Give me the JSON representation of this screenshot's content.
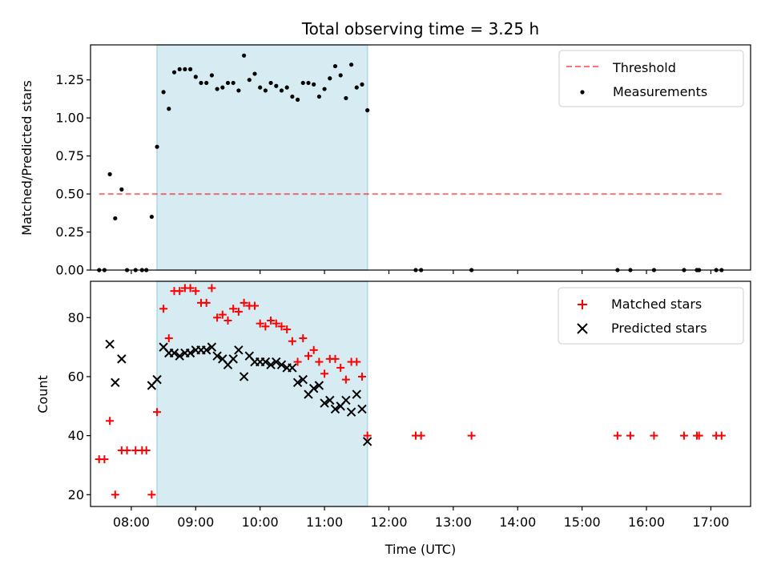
{
  "colors": {
    "shade": "#add8e6",
    "threshold": "#ff0000",
    "measurements": "#000000",
    "matched": "#ff0000",
    "predicted": "#000000"
  },
  "chart_data": [
    {
      "type": "scatter",
      "title": "Total observing time = 3.25 h",
      "ylabel": "Matched/Predicted stars",
      "xlabel": "",
      "xlim": [
        "07:22",
        "17:37"
      ],
      "ylim": [
        0,
        1.48
      ],
      "yticks": [
        "0.00",
        "0.25",
        "0.50",
        "0.75",
        "1.00",
        "1.25"
      ],
      "grid": false,
      "legend": "upper right",
      "shaded_interval": [
        "08:24",
        "11:40"
      ],
      "threshold": {
        "name": "Threshold",
        "y": 0.5,
        "x": [
          "07:30",
          "17:13"
        ],
        "style": "dashed"
      },
      "series": [
        {
          "name": "Measurements",
          "marker": "dot",
          "points": [
            [
              "07:30",
              0.0
            ],
            [
              "07:35",
              0.0
            ],
            [
              "07:40",
              0.63
            ],
            [
              "07:45",
              0.34
            ],
            [
              "07:51",
              0.53
            ],
            [
              "07:56",
              0.0
            ],
            [
              "08:04",
              0.0
            ],
            [
              "08:10",
              0.0
            ],
            [
              "08:14",
              0.0
            ],
            [
              "08:19",
              0.35
            ],
            [
              "08:24",
              0.81
            ],
            [
              "08:30",
              1.17
            ],
            [
              "08:35",
              1.06
            ],
            [
              "08:40",
              1.3
            ],
            [
              "08:45",
              1.32
            ],
            [
              "08:50",
              1.32
            ],
            [
              "08:55",
              1.32
            ],
            [
              "09:00",
              1.27
            ],
            [
              "09:05",
              1.23
            ],
            [
              "09:10",
              1.23
            ],
            [
              "09:15",
              1.28
            ],
            [
              "09:20",
              1.19
            ],
            [
              "09:25",
              1.2
            ],
            [
              "09:30",
              1.23
            ],
            [
              "09:35",
              1.23
            ],
            [
              "09:40",
              1.18
            ],
            [
              "09:45",
              1.41
            ],
            [
              "09:50",
              1.25
            ],
            [
              "09:55",
              1.29
            ],
            [
              "10:00",
              1.2
            ],
            [
              "10:05",
              1.18
            ],
            [
              "10:10",
              1.23
            ],
            [
              "10:15",
              1.21
            ],
            [
              "10:20",
              1.18
            ],
            [
              "10:25",
              1.2
            ],
            [
              "10:30",
              1.14
            ],
            [
              "10:35",
              1.12
            ],
            [
              "10:40",
              1.23
            ],
            [
              "10:45",
              1.23
            ],
            [
              "10:50",
              1.22
            ],
            [
              "10:55",
              1.14
            ],
            [
              "11:00",
              1.19
            ],
            [
              "11:05",
              1.26
            ],
            [
              "11:10",
              1.34
            ],
            [
              "11:15",
              1.28
            ],
            [
              "11:20",
              1.13
            ],
            [
              "11:25",
              1.35
            ],
            [
              "11:30",
              1.2
            ],
            [
              "11:35",
              1.22
            ],
            [
              "11:40",
              1.05
            ],
            [
              "12:25",
              0.0
            ],
            [
              "12:30",
              0.0
            ],
            [
              "13:17",
              0.0
            ],
            [
              "15:33",
              0.0
            ],
            [
              "15:45",
              0.0
            ],
            [
              "16:07",
              0.0
            ],
            [
              "16:35",
              0.0
            ],
            [
              "16:47",
              0.0
            ],
            [
              "16:49",
              0.0
            ],
            [
              "17:05",
              0.0
            ],
            [
              "17:10",
              0.0
            ]
          ]
        }
      ]
    },
    {
      "type": "scatter",
      "title": "",
      "ylabel": "Count",
      "xlabel": "Time (UTC)",
      "xlim": [
        "07:22",
        "17:37"
      ],
      "ylim": [
        16,
        92.3
      ],
      "xticks": [
        "08:00",
        "09:00",
        "10:00",
        "11:00",
        "12:00",
        "13:00",
        "14:00",
        "15:00",
        "16:00",
        "17:00"
      ],
      "yticks": [
        "20",
        "40",
        "60",
        "80"
      ],
      "grid": false,
      "legend": "upper right",
      "shaded_interval": [
        "08:24",
        "11:40"
      ],
      "series": [
        {
          "name": "Matched stars",
          "marker": "plus",
          "points": [
            [
              "07:30",
              32
            ],
            [
              "07:35",
              32
            ],
            [
              "07:40",
              45
            ],
            [
              "07:45",
              20
            ],
            [
              "07:51",
              35
            ],
            [
              "07:56",
              35
            ],
            [
              "08:04",
              35
            ],
            [
              "08:10",
              35
            ],
            [
              "08:14",
              35
            ],
            [
              "08:19",
              20
            ],
            [
              "08:24",
              48
            ],
            [
              "08:30",
              83
            ],
            [
              "08:35",
              73
            ],
            [
              "08:40",
              89
            ],
            [
              "08:45",
              89
            ],
            [
              "08:50",
              90
            ],
            [
              "08:55",
              90
            ],
            [
              "09:00",
              89
            ],
            [
              "09:05",
              85
            ],
            [
              "09:10",
              85
            ],
            [
              "09:15",
              90
            ],
            [
              "09:20",
              80
            ],
            [
              "09:25",
              81
            ],
            [
              "09:30",
              79
            ],
            [
              "09:35",
              83
            ],
            [
              "09:40",
              82
            ],
            [
              "09:45",
              85
            ],
            [
              "09:50",
              84
            ],
            [
              "09:55",
              84
            ],
            [
              "10:00",
              78
            ],
            [
              "10:05",
              77
            ],
            [
              "10:10",
              79
            ],
            [
              "10:15",
              78
            ],
            [
              "10:20",
              77
            ],
            [
              "10:25",
              76
            ],
            [
              "10:30",
              72
            ],
            [
              "10:35",
              65
            ],
            [
              "10:40",
              73
            ],
            [
              "10:45",
              67
            ],
            [
              "10:50",
              69
            ],
            [
              "10:55",
              65
            ],
            [
              "11:00",
              61
            ],
            [
              "11:05",
              66
            ],
            [
              "11:10",
              66
            ],
            [
              "11:15",
              63
            ],
            [
              "11:20",
              59
            ],
            [
              "11:25",
              65
            ],
            [
              "11:30",
              65
            ],
            [
              "11:35",
              60
            ],
            [
              "11:40",
              40
            ],
            [
              "12:25",
              40
            ],
            [
              "12:30",
              40
            ],
            [
              "13:17",
              40
            ],
            [
              "15:33",
              40
            ],
            [
              "15:45",
              40
            ],
            [
              "16:07",
              40
            ],
            [
              "16:35",
              40
            ],
            [
              "16:47",
              40
            ],
            [
              "16:49",
              40
            ],
            [
              "17:05",
              40
            ],
            [
              "17:10",
              40
            ]
          ]
        },
        {
          "name": "Predicted stars",
          "marker": "x",
          "points": [
            [
              "07:40",
              71
            ],
            [
              "07:45",
              58
            ],
            [
              "07:51",
              66
            ],
            [
              "08:19",
              57
            ],
            [
              "08:24",
              59
            ],
            [
              "08:30",
              70
            ],
            [
              "08:35",
              68
            ],
            [
              "08:40",
              68
            ],
            [
              "08:45",
              67
            ],
            [
              "08:50",
              68
            ],
            [
              "08:55",
              68
            ],
            [
              "09:00",
              69
            ],
            [
              "09:05",
              69
            ],
            [
              "09:10",
              69
            ],
            [
              "09:15",
              70
            ],
            [
              "09:20",
              67
            ],
            [
              "09:25",
              66
            ],
            [
              "09:30",
              64
            ],
            [
              "09:35",
              66
            ],
            [
              "09:40",
              69
            ],
            [
              "09:45",
              60
            ],
            [
              "09:50",
              67
            ],
            [
              "09:55",
              65
            ],
            [
              "10:00",
              65
            ],
            [
              "10:05",
              65
            ],
            [
              "10:10",
              64
            ],
            [
              "10:15",
              65
            ],
            [
              "10:20",
              64
            ],
            [
              "10:25",
              63
            ],
            [
              "10:30",
              63
            ],
            [
              "10:35",
              58
            ],
            [
              "10:40",
              59
            ],
            [
              "10:45",
              54
            ],
            [
              "10:50",
              56
            ],
            [
              "10:55",
              57
            ],
            [
              "11:00",
              51
            ],
            [
              "11:05",
              52
            ],
            [
              "11:10",
              49
            ],
            [
              "11:15",
              50
            ],
            [
              "11:20",
              52
            ],
            [
              "11:25",
              48
            ],
            [
              "11:30",
              54
            ],
            [
              "11:35",
              49
            ],
            [
              "11:40",
              38
            ]
          ]
        }
      ]
    }
  ]
}
